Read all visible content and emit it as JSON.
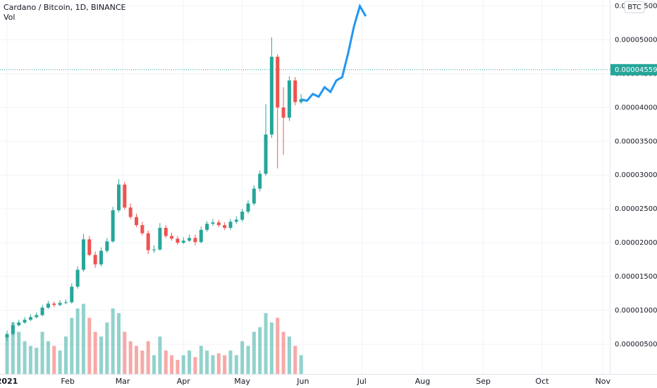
{
  "chart_data": {
    "type": "candlestick",
    "title": "Cardano / Bitcoin, 1D, BINANCE",
    "currency": "BTC",
    "grid": true,
    "candles": {
      "up_color": "#26a69a",
      "down_color": "#ef5350",
      "open": [
        6e-06,
        6.5e-06,
        7.8e-06,
        8.2e-06,
        8.6e-06,
        9e-06,
        9.3e-06,
        1.04e-05,
        1.1e-05,
        1.08e-05,
        1.11e-05,
        1.12e-05,
        1.35e-05,
        1.6e-05,
        2.05e-05,
        1.82e-05,
        1.68e-05,
        1.88e-05,
        2.02e-05,
        2.48e-05,
        2.86e-05,
        2.52e-05,
        2.38e-05,
        2.26e-05,
        2.14e-05,
        1.89e-05,
        1.9e-05,
        2.22e-05,
        2.1e-05,
        2.06e-05,
        2e-05,
        2.03e-05,
        2.07e-05,
        2.01e-05,
        2.19e-05,
        2.28e-05,
        2.3e-05,
        2.26e-05,
        2.22e-05,
        2.31e-05,
        2.34e-05,
        2.46e-05,
        2.58e-05,
        2.8e-05,
        3.02e-05,
        3.6e-05,
        4.75e-05,
        4e-05,
        3.85e-05,
        4.4e-05,
        4.08e-05
      ],
      "high": [
        7e-06,
        8.3e-06,
        8.6e-06,
        9e-06,
        9.4e-06,
        9.7e-06,
        1.08e-05,
        1.14e-05,
        1.13e-05,
        1.15e-05,
        1.16e-05,
        1.4e-05,
        1.65e-05,
        2.13e-05,
        2.1e-05,
        1.87e-05,
        1.93e-05,
        2.07e-05,
        2.53e-05,
        2.94e-05,
        2.9e-05,
        2.58e-05,
        2.43e-05,
        2.31e-05,
        2.18e-05,
        1.96e-05,
        2.29e-05,
        2.26e-05,
        2.15e-05,
        2.1e-05,
        2.08e-05,
        2.12e-05,
        2.12e-05,
        2.24e-05,
        2.32e-05,
        2.35e-05,
        2.34e-05,
        2.3e-05,
        2.35e-05,
        2.39e-05,
        2.5e-05,
        2.63e-05,
        2.85e-05,
        3.07e-05,
        4.05e-05,
        5.04e-05,
        4.79e-05,
        4.3e-05,
        4.46e-05,
        4.45e-05,
        4.2e-05
      ],
      "low": [
        5.5e-06,
        6.3e-06,
        7.6e-06,
        8e-06,
        8.4e-06,
        8.8e-06,
        9.1e-06,
        1.02e-05,
        1.05e-05,
        1.06e-05,
        1.09e-05,
        1.1e-05,
        1.32e-05,
        1.57e-05,
        1.8e-05,
        1.63e-05,
        1.65e-05,
        1.85e-05,
        2e-05,
        2.45e-05,
        2.49e-05,
        2.35e-05,
        2.23e-05,
        2.11e-05,
        1.83e-05,
        1.85e-05,
        1.88e-05,
        2.07e-05,
        2.03e-05,
        1.97e-05,
        1.98e-05,
        2.01e-05,
        1.96e-05,
        1.99e-05,
        2.16e-05,
        2.25e-05,
        2.23e-05,
        2.19e-05,
        2.19e-05,
        2.28e-05,
        2.31e-05,
        2.43e-05,
        2.55e-05,
        2.76e-05,
        2.99e-05,
        3.55e-05,
        3.1e-05,
        3.3e-05,
        3.8e-05,
        4.03e-05,
        4.05e-05
      ],
      "close": [
        6.5e-06,
        7.8e-06,
        8.2e-06,
        8.6e-06,
        9e-06,
        9.3e-06,
        1.04e-05,
        1.1e-05,
        1.08e-05,
        1.11e-05,
        1.12e-05,
        1.35e-05,
        1.6e-05,
        2.05e-05,
        1.82e-05,
        1.68e-05,
        1.88e-05,
        2.02e-05,
        2.48e-05,
        2.86e-05,
        2.52e-05,
        2.38e-05,
        2.26e-05,
        2.14e-05,
        1.89e-05,
        1.9e-05,
        2.22e-05,
        2.1e-05,
        2.06e-05,
        2e-05,
        2.03e-05,
        2.07e-05,
        2.01e-05,
        2.19e-05,
        2.28e-05,
        2.3e-05,
        2.26e-05,
        2.22e-05,
        2.31e-05,
        2.34e-05,
        2.46e-05,
        2.58e-05,
        2.8e-05,
        3.02e-05,
        3.6e-05,
        4.75e-05,
        4e-05,
        3.85e-05,
        4.4e-05,
        4.08e-05,
        4.12e-05
      ]
    },
    "volume": {
      "name": "Vol",
      "axis": "y2",
      "values": [
        40,
        55,
        45,
        35,
        30,
        28,
        45,
        35,
        30,
        25,
        40,
        60,
        70,
        75,
        60,
        45,
        40,
        55,
        70,
        65,
        45,
        35,
        30,
        25,
        35,
        20,
        40,
        25,
        20,
        15,
        20,
        25,
        18,
        30,
        25,
        20,
        22,
        20,
        25,
        20,
        35,
        30,
        45,
        50,
        65,
        55,
        60,
        45,
        40,
        30,
        20
      ]
    },
    "projection": {
      "color": "#2196f3",
      "x": [
        50,
        51,
        52,
        53,
        54,
        55,
        56,
        57,
        58,
        59,
        60,
        61
      ],
      "values": [
        4.12e-05,
        4.1e-05,
        4.2e-05,
        4.16e-05,
        4.3e-05,
        4.23e-05,
        4.4e-05,
        4.45e-05,
        4.8e-05,
        5.2e-05,
        5.5e-05,
        5.35e-05
      ]
    },
    "last_price": {
      "value": 4.559e-05,
      "label": "0.00004559"
    },
    "xlim": [
      -1.2,
      102.5
    ],
    "ylim": [
      6e-07,
      5.59e-05
    ],
    "y2lim": [
      0,
      400
    ],
    "xticks": [
      {
        "value": 0,
        "label": "2021"
      },
      {
        "value": 10.33,
        "label": "Feb"
      },
      {
        "value": 19.67,
        "label": "Mar"
      },
      {
        "value": 30,
        "label": "Apr"
      },
      {
        "value": 40,
        "label": "May"
      },
      {
        "value": 50.33,
        "label": "Jun"
      },
      {
        "value": 60.33,
        "label": "Jul"
      },
      {
        "value": 70.67,
        "label": "Aug"
      },
      {
        "value": 81,
        "label": "Sep"
      },
      {
        "value": 91,
        "label": "Oct"
      },
      {
        "value": 101.33,
        "label": "Nov"
      }
    ],
    "yticks": [
      {
        "value": 5e-06,
        "label": "0.00000500"
      },
      {
        "value": 1e-05,
        "label": "0.00001000"
      },
      {
        "value": 1.5e-05,
        "label": "0.00001500"
      },
      {
        "value": 2e-05,
        "label": "0.00002000"
      },
      {
        "value": 2.5e-05,
        "label": "0.00002500"
      },
      {
        "value": 3e-05,
        "label": "0.00003000"
      },
      {
        "value": 3.5e-05,
        "label": "0.00003500"
      },
      {
        "value": 4e-05,
        "label": "0.00004000"
      },
      {
        "value": 4.5e-05,
        "label": "0.00004500"
      },
      {
        "value": 5e-05,
        "label": "0.00005000"
      },
      {
        "value": 5.5e-05,
        "label": "0.00005500"
      }
    ]
  }
}
